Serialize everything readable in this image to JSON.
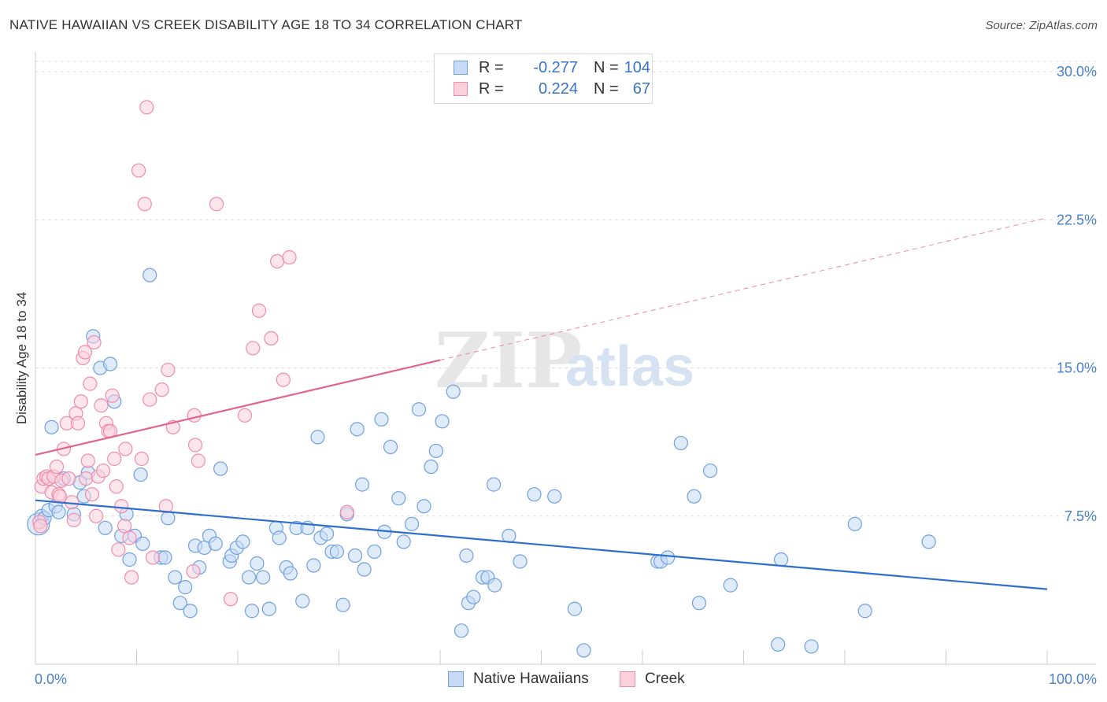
{
  "header": {
    "title": "NATIVE HAWAIIAN VS CREEK DISABILITY AGE 18 TO 34 CORRELATION CHART",
    "source": "Source: ZipAtlas.com"
  },
  "watermark": {
    "zip": "ZIP",
    "atlas": "atlas"
  },
  "legend": {
    "rows": [
      {
        "r_label": "R =",
        "r_value": "-0.277",
        "n_label": "N =",
        "n_value": "104",
        "color": "#6fa0e0"
      },
      {
        "r_label": "R =",
        "r_value": "0.224",
        "n_label": "N =",
        "n_value": "67",
        "color": "#f08cab"
      }
    ]
  },
  "chart_data": {
    "type": "scatter",
    "title": "NATIVE HAWAIIAN VS CREEK DISABILITY AGE 18 TO 34 CORRELATION CHART",
    "xlabel": "",
    "ylabel": "Disability Age 18 to 34",
    "xlim": [
      0,
      100
    ],
    "ylim": [
      0,
      31
    ],
    "x_tick_labels": [
      "0.0%",
      "100.0%"
    ],
    "y_ticks": [
      7.5,
      15.0,
      22.5,
      30.0
    ],
    "y_tick_labels": [
      "7.5%",
      "15.0%",
      "22.5%",
      "30.0%"
    ],
    "grid": true,
    "legend_position": "bottom-center",
    "series": [
      {
        "name": "Native Hawaiians",
        "color": "#6fa0e0",
        "fill": "#c6daf5",
        "trend": {
          "x": [
            0,
            100
          ],
          "y": [
            8.3,
            3.8
          ],
          "dashed_after": null
        },
        "points": [
          [
            0.3,
            7.1
          ],
          [
            0.6,
            7.5
          ],
          [
            0.9,
            7.4
          ],
          [
            1.3,
            7.8
          ],
          [
            1.6,
            12.0
          ],
          [
            2.0,
            8.0
          ],
          [
            2.3,
            7.7
          ],
          [
            2.8,
            9.4
          ],
          [
            3.8,
            7.6
          ],
          [
            4.4,
            9.2
          ],
          [
            4.8,
            8.5
          ],
          [
            5.2,
            9.7
          ],
          [
            5.7,
            16.6
          ],
          [
            6.4,
            15.0
          ],
          [
            6.9,
            6.9
          ],
          [
            7.4,
            15.2
          ],
          [
            7.8,
            13.3
          ],
          [
            8.5,
            6.5
          ],
          [
            9.0,
            7.6
          ],
          [
            9.3,
            5.3
          ],
          [
            9.8,
            6.5
          ],
          [
            10.4,
            9.6
          ],
          [
            10.6,
            6.1
          ],
          [
            11.3,
            19.7
          ],
          [
            12.4,
            5.4
          ],
          [
            12.8,
            5.4
          ],
          [
            13.1,
            7.4
          ],
          [
            13.8,
            4.4
          ],
          [
            14.3,
            3.1
          ],
          [
            14.8,
            3.9
          ],
          [
            15.3,
            2.7
          ],
          [
            15.8,
            6.0
          ],
          [
            16.2,
            4.9
          ],
          [
            16.7,
            5.9
          ],
          [
            17.2,
            6.5
          ],
          [
            17.8,
            6.1
          ],
          [
            18.3,
            9.9
          ],
          [
            19.2,
            5.2
          ],
          [
            19.4,
            5.5
          ],
          [
            19.9,
            5.9
          ],
          [
            20.5,
            6.2
          ],
          [
            21.1,
            4.4
          ],
          [
            21.4,
            2.7
          ],
          [
            21.9,
            5.1
          ],
          [
            22.5,
            4.4
          ],
          [
            23.1,
            2.8
          ],
          [
            23.8,
            6.9
          ],
          [
            24.1,
            6.4
          ],
          [
            24.8,
            4.9
          ],
          [
            25.2,
            4.6
          ],
          [
            25.8,
            6.9
          ],
          [
            26.4,
            3.2
          ],
          [
            26.9,
            6.9
          ],
          [
            27.5,
            5.0
          ],
          [
            27.9,
            11.5
          ],
          [
            28.2,
            6.4
          ],
          [
            28.8,
            6.6
          ],
          [
            29.3,
            5.7
          ],
          [
            29.8,
            5.7
          ],
          [
            30.4,
            3.0
          ],
          [
            30.8,
            7.6
          ],
          [
            31.6,
            5.5
          ],
          [
            31.8,
            11.9
          ],
          [
            32.3,
            9.1
          ],
          [
            32.5,
            4.8
          ],
          [
            33.5,
            5.7
          ],
          [
            34.2,
            12.4
          ],
          [
            34.5,
            6.7
          ],
          [
            35.1,
            11.0
          ],
          [
            35.9,
            8.4
          ],
          [
            36.4,
            6.2
          ],
          [
            37.2,
            7.1
          ],
          [
            37.9,
            12.9
          ],
          [
            38.4,
            8.0
          ],
          [
            39.1,
            10.0
          ],
          [
            39.6,
            10.8
          ],
          [
            40.2,
            12.3
          ],
          [
            41.3,
            13.8
          ],
          [
            42.1,
            1.7
          ],
          [
            42.6,
            5.5
          ],
          [
            42.8,
            3.1
          ],
          [
            43.3,
            3.4
          ],
          [
            44.2,
            4.4
          ],
          [
            44.7,
            4.4
          ],
          [
            45.3,
            9.1
          ],
          [
            45.4,
            4.0
          ],
          [
            46.8,
            6.5
          ],
          [
            47.9,
            5.2
          ],
          [
            49.3,
            8.6
          ],
          [
            51.3,
            8.5
          ],
          [
            53.3,
            2.8
          ],
          [
            54.2,
            0.7
          ],
          [
            61.5,
            5.2
          ],
          [
            61.8,
            5.2
          ],
          [
            62.5,
            5.4
          ],
          [
            63.8,
            11.2
          ],
          [
            65.1,
            8.5
          ],
          [
            65.6,
            3.1
          ],
          [
            66.7,
            9.8
          ],
          [
            68.7,
            4.0
          ],
          [
            73.4,
            1.0
          ],
          [
            73.7,
            5.3
          ],
          [
            76.7,
            0.9
          ],
          [
            81.0,
            7.1
          ],
          [
            82.0,
            2.7
          ],
          [
            88.3,
            6.2
          ]
        ]
      },
      {
        "name": "Creek",
        "color": "#f08cab",
        "fill": "#fbd0dd",
        "trend": {
          "x": [
            0,
            100
          ],
          "y": [
            10.6,
            22.6
          ],
          "solid_until_x": 40
        },
        "points": [
          [
            0.4,
            7.2
          ],
          [
            0.5,
            7.0
          ],
          [
            0.6,
            9.0
          ],
          [
            0.8,
            9.4
          ],
          [
            1.1,
            9.5
          ],
          [
            1.3,
            9.4
          ],
          [
            1.6,
            8.7
          ],
          [
            1.8,
            9.5
          ],
          [
            2.1,
            10.0
          ],
          [
            2.3,
            8.6
          ],
          [
            2.4,
            8.5
          ],
          [
            2.6,
            9.3
          ],
          [
            2.8,
            10.9
          ],
          [
            3.1,
            12.2
          ],
          [
            3.3,
            9.4
          ],
          [
            3.6,
            8.2
          ],
          [
            3.8,
            7.3
          ],
          [
            4.0,
            12.7
          ],
          [
            4.2,
            12.2
          ],
          [
            4.5,
            13.3
          ],
          [
            4.7,
            15.5
          ],
          [
            4.9,
            15.8
          ],
          [
            5.0,
            9.4
          ],
          [
            5.2,
            10.3
          ],
          [
            5.4,
            14.2
          ],
          [
            5.6,
            8.6
          ],
          [
            5.8,
            16.3
          ],
          [
            6.0,
            7.5
          ],
          [
            6.2,
            9.5
          ],
          [
            6.5,
            13.1
          ],
          [
            6.7,
            9.8
          ],
          [
            7.0,
            12.2
          ],
          [
            7.2,
            11.8
          ],
          [
            7.4,
            11.8
          ],
          [
            7.6,
            13.6
          ],
          [
            7.8,
            10.4
          ],
          [
            8.0,
            9.0
          ],
          [
            8.2,
            5.8
          ],
          [
            8.5,
            8.0
          ],
          [
            8.8,
            7.0
          ],
          [
            8.9,
            10.9
          ],
          [
            9.3,
            6.4
          ],
          [
            9.5,
            4.4
          ],
          [
            10.2,
            25.0
          ],
          [
            10.5,
            10.4
          ],
          [
            10.8,
            23.3
          ],
          [
            11.0,
            28.2
          ],
          [
            11.3,
            13.4
          ],
          [
            11.6,
            5.4
          ],
          [
            12.5,
            13.9
          ],
          [
            12.9,
            8.0
          ],
          [
            13.1,
            14.9
          ],
          [
            13.6,
            12.0
          ],
          [
            15.6,
            4.7
          ],
          [
            15.7,
            12.6
          ],
          [
            15.8,
            11.1
          ],
          [
            16.1,
            10.3
          ],
          [
            17.9,
            23.3
          ],
          [
            19.3,
            3.3
          ],
          [
            20.7,
            12.6
          ],
          [
            21.5,
            16.0
          ],
          [
            22.1,
            17.9
          ],
          [
            23.3,
            16.5
          ],
          [
            23.9,
            20.4
          ],
          [
            24.5,
            14.4
          ],
          [
            25.1,
            20.6
          ],
          [
            30.8,
            7.7
          ]
        ]
      }
    ]
  },
  "bottom_legend": {
    "items": [
      {
        "label": "Native Hawaiians",
        "color": "#6fa0e0",
        "fill": "#c6daf5"
      },
      {
        "label": "Creek",
        "color": "#f08cab",
        "fill": "#fbd0dd"
      }
    ]
  }
}
